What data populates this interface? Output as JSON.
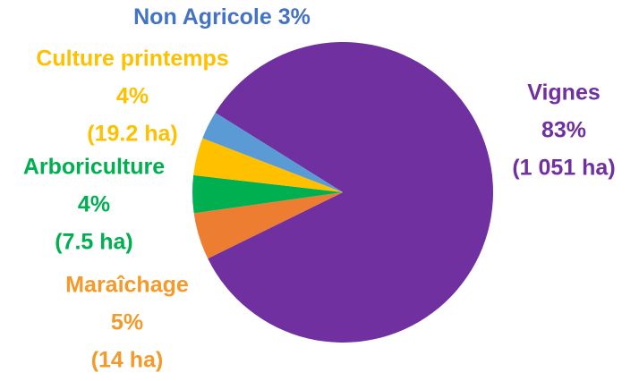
{
  "chart_data": {
    "type": "pie",
    "categories": [
      "Vignes",
      "Maraîchage",
      "Arboriculture",
      "Culture printemps",
      "Non Agricole"
    ],
    "values": [
      83,
      5,
      4,
      4,
      3
    ],
    "value_labels": [
      "83%",
      "5%",
      "4%",
      "4%",
      "3%"
    ],
    "area_labels": [
      "(1 051 ha)",
      "(14 ha)",
      "(7.5 ha)",
      "(19.2 ha)",
      null
    ],
    "colors": [
      "#7030a0",
      "#ed7d31",
      "#00b050",
      "#ffc000",
      "#5b9bd5"
    ],
    "label_colors": [
      "#7030a0",
      "#f39a2a",
      "#00b050",
      "#ffc000",
      "#4472c4"
    ]
  }
}
